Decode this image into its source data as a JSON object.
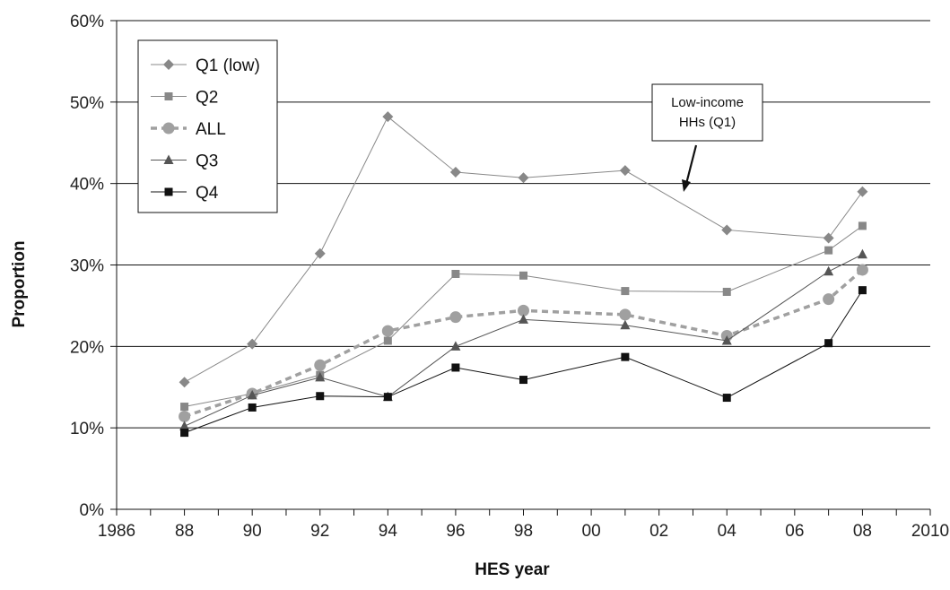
{
  "chart_data": {
    "type": "line",
    "xlabel": "HES year",
    "ylabel": "Proportion",
    "x_year_range": [
      1986,
      2010
    ],
    "x_ticks": [
      {
        "year": 1986,
        "label": "1986"
      },
      {
        "year": 1988,
        "label": "88"
      },
      {
        "year": 1990,
        "label": "90"
      },
      {
        "year": 1992,
        "label": "92"
      },
      {
        "year": 1994,
        "label": "94"
      },
      {
        "year": 1996,
        "label": "96"
      },
      {
        "year": 1998,
        "label": "98"
      },
      {
        "year": 2000,
        "label": "00"
      },
      {
        "year": 2002,
        "label": "02"
      },
      {
        "year": 2004,
        "label": "04"
      },
      {
        "year": 2006,
        "label": "06"
      },
      {
        "year": 2008,
        "label": "08"
      },
      {
        "year": 2010,
        "label": "2010"
      }
    ],
    "ylim": [
      0,
      60
    ],
    "y_ticks": [
      0,
      10,
      20,
      30,
      40,
      50,
      60
    ],
    "y_tick_labels": [
      "0%",
      "10%",
      "20%",
      "30%",
      "40%",
      "50%",
      "60%"
    ],
    "gridlines": "horizontal",
    "legend_position": "top-left",
    "series": [
      {
        "name": "Q1 (low)",
        "marker": "diamond",
        "color": "#888888",
        "line_style": "solid",
        "x": [
          1988,
          1990,
          1992,
          1994,
          1996,
          1998,
          2001,
          2004,
          2007,
          2008
        ],
        "values": [
          15.6,
          20.3,
          31.4,
          48.2,
          41.4,
          40.7,
          41.6,
          34.3,
          33.3,
          39.0
        ]
      },
      {
        "name": "Q2",
        "marker": "square",
        "color": "#888888",
        "line_style": "solid",
        "x": [
          1988,
          1990,
          1992,
          1994,
          1996,
          1998,
          2001,
          2004,
          2007,
          2008
        ],
        "values": [
          12.6,
          14.2,
          16.5,
          20.7,
          28.9,
          28.7,
          26.8,
          26.7,
          31.8,
          34.8
        ]
      },
      {
        "name": "ALL",
        "marker": "circle",
        "color": "#a0a0a0",
        "line_style": "dashed",
        "x": [
          1988,
          1990,
          1992,
          1994,
          1996,
          1998,
          2001,
          2004,
          2007,
          2008
        ],
        "values": [
          11.4,
          14.2,
          17.7,
          21.9,
          23.6,
          24.4,
          23.9,
          21.3,
          25.8,
          29.4
        ]
      },
      {
        "name": "Q3",
        "marker": "triangle",
        "color": "#555555",
        "line_style": "solid",
        "x": [
          1988,
          1990,
          1992,
          1994,
          1996,
          1998,
          2001,
          2004,
          2007,
          2008
        ],
        "values": [
          10.2,
          14.0,
          16.2,
          13.8,
          20.0,
          23.3,
          22.6,
          20.7,
          29.2,
          31.3
        ]
      },
      {
        "name": "Q4",
        "marker": "square",
        "color": "#111111",
        "line_style": "solid",
        "x": [
          1988,
          1990,
          1992,
          1994,
          1996,
          1998,
          2001,
          2004,
          2007,
          2008
        ],
        "values": [
          9.4,
          12.5,
          13.9,
          13.8,
          17.4,
          15.9,
          18.7,
          13.7,
          20.4,
          26.9
        ]
      }
    ],
    "annotation": {
      "lines": [
        "Low-income",
        "HHs (Q1)"
      ]
    }
  }
}
